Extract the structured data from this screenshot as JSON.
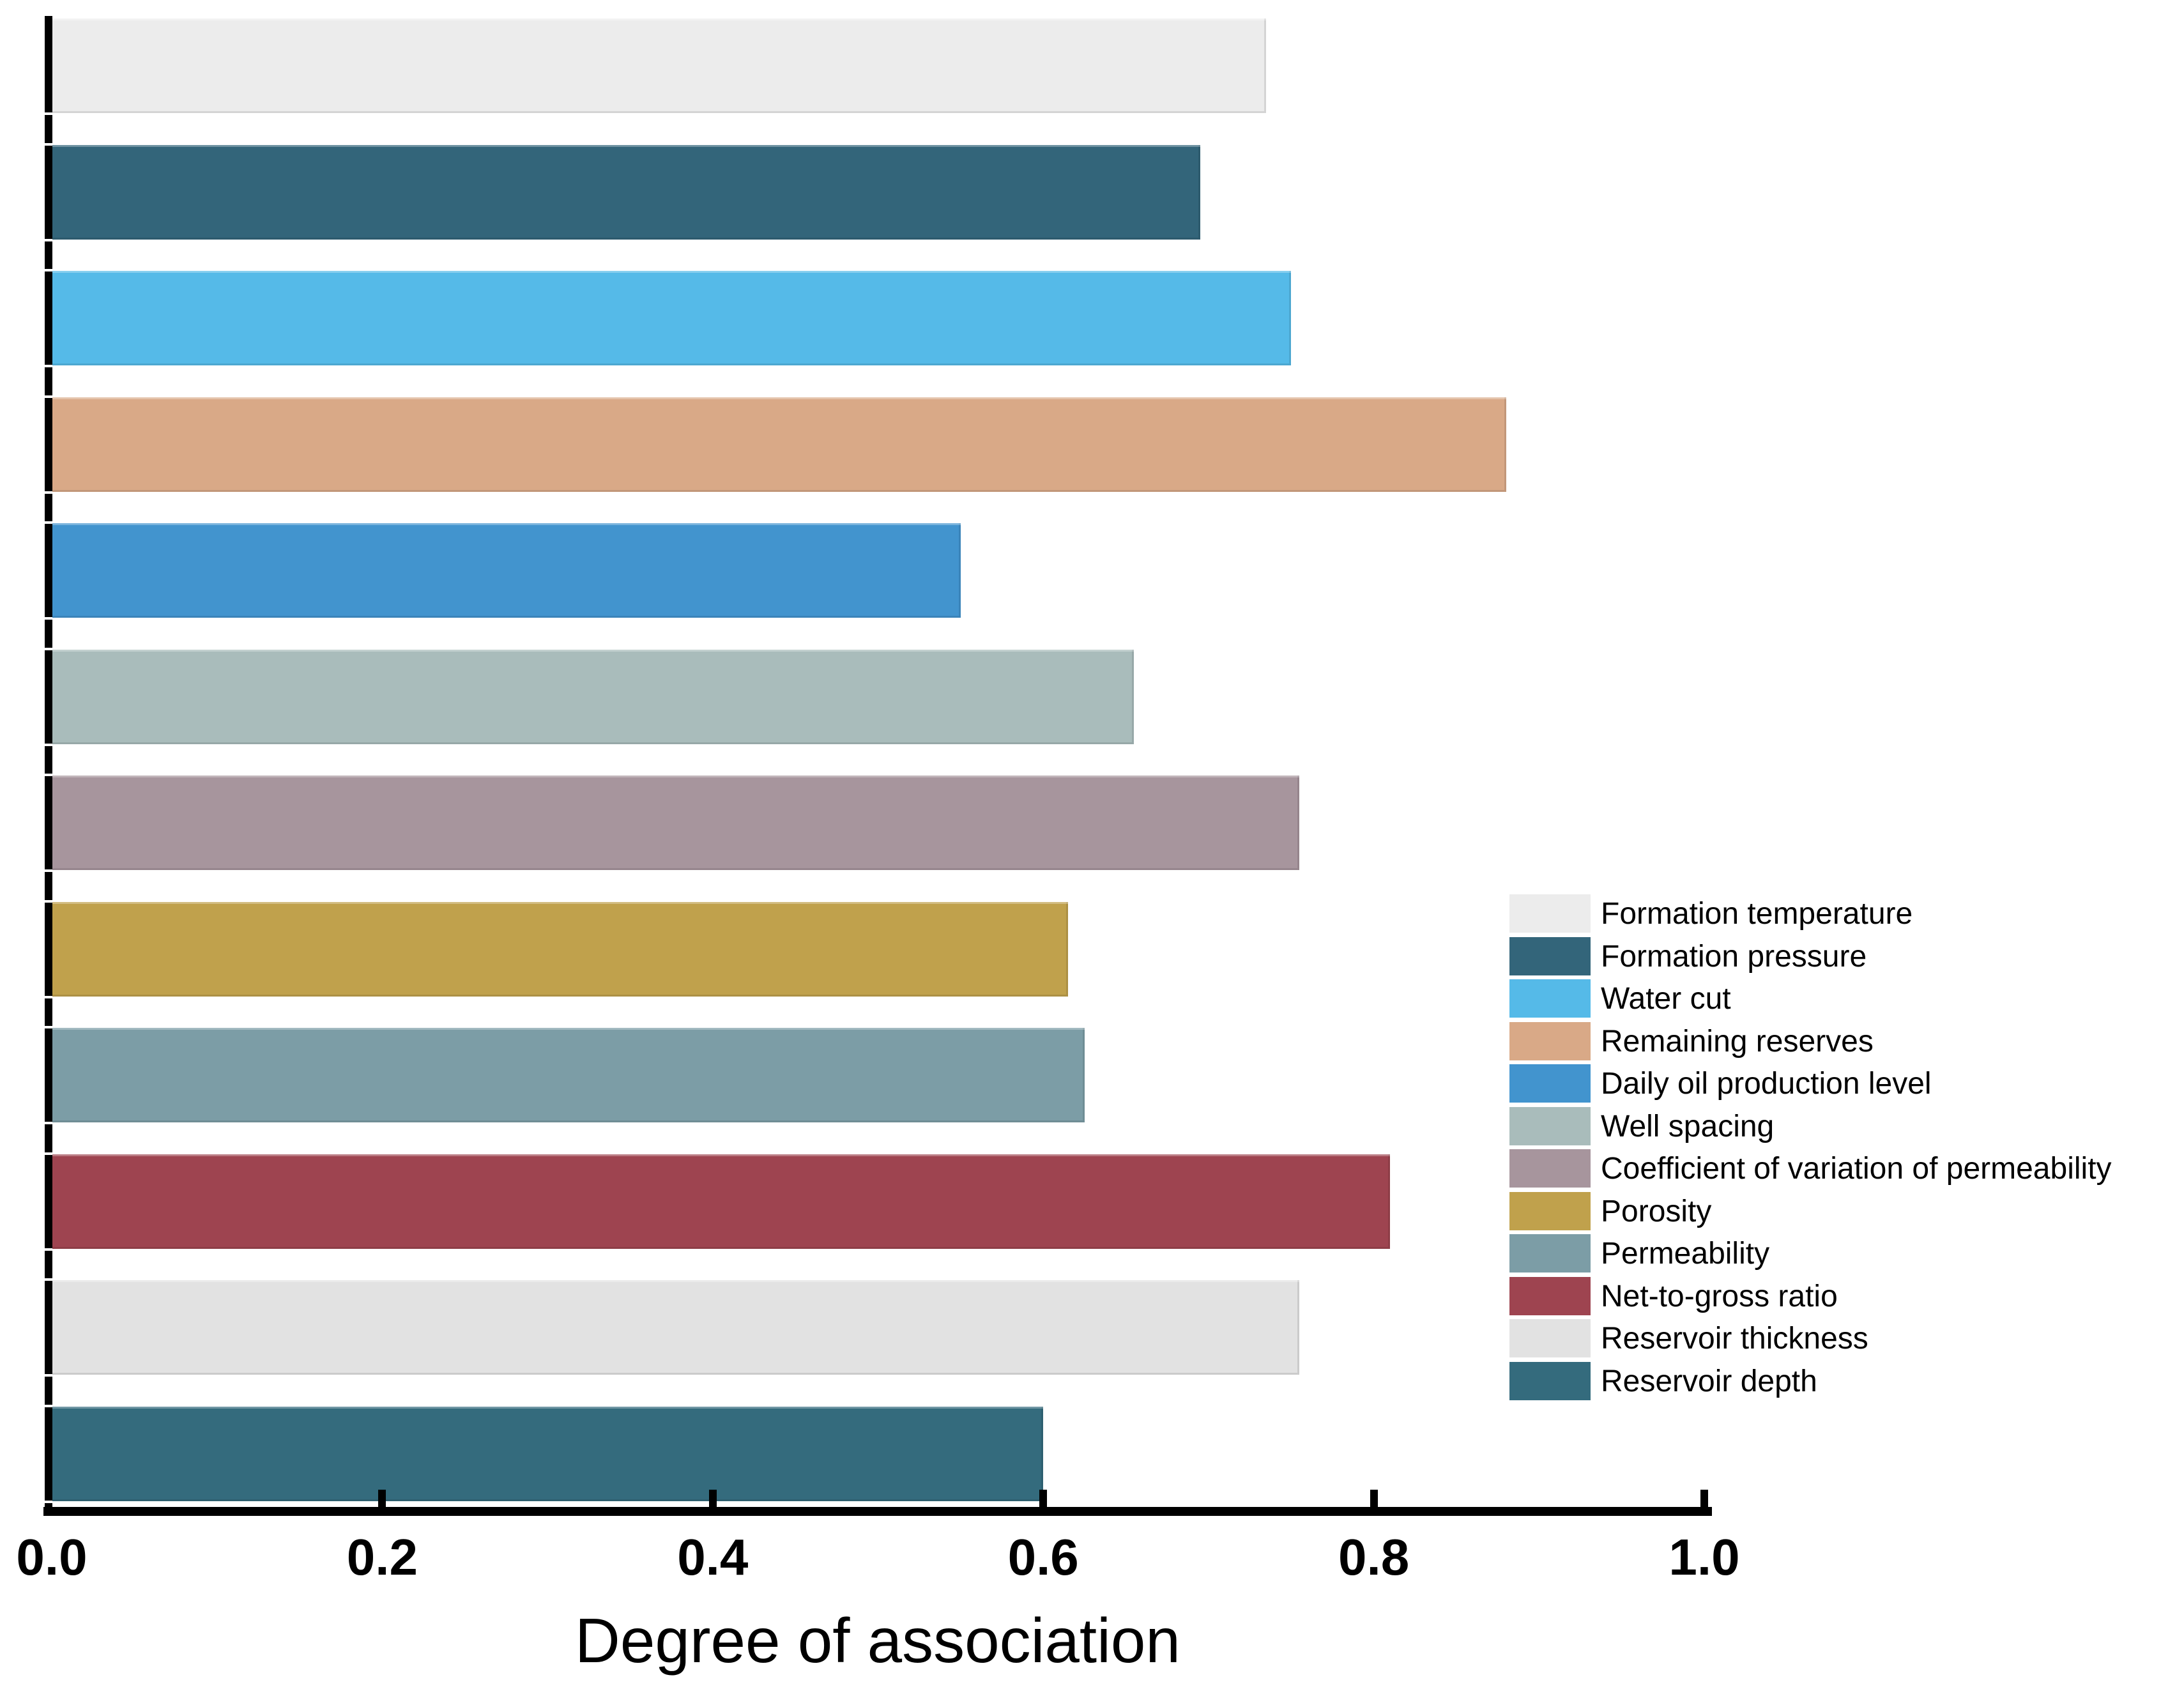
{
  "chart_data": {
    "type": "bar",
    "orientation": "horizontal",
    "title": "",
    "xlabel": "Degree of association",
    "ylabel": "",
    "xlim": [
      0.0,
      1.0
    ],
    "x_tick_labels": [
      "0.0",
      "0.2",
      "0.4",
      "0.6",
      "0.8",
      "1.0"
    ],
    "x_tick_values": [
      0.0,
      0.2,
      0.4,
      0.6,
      0.8,
      1.0
    ],
    "grid": false,
    "legend_position": "right-inside",
    "background_color": "#FFFFFF",
    "axis_color": "#000000",
    "categories": [
      "Formation temperature",
      "Formation pressure",
      "Water cut",
      "Remaining reserves",
      "Daily oil production level",
      "Well spacing",
      "Coefficient of variation of permeability",
      "Porosity",
      "Permeability",
      "Net-to-gross ratio",
      "Reservoir thickness",
      "Reservoir depth"
    ],
    "values": [
      0.735,
      0.695,
      0.75,
      0.88,
      0.55,
      0.655,
      0.755,
      0.615,
      0.625,
      0.81,
      0.755,
      0.6
    ],
    "colors": [
      "#ECECEC",
      "#33657A",
      "#55BAE8",
      "#D9A987",
      "#4294CE",
      "#A9BCBB",
      "#A7959D",
      "#C0A14C",
      "#7C9DA6",
      "#9E4450",
      "#E2E2E2",
      "#346B7D"
    ]
  }
}
